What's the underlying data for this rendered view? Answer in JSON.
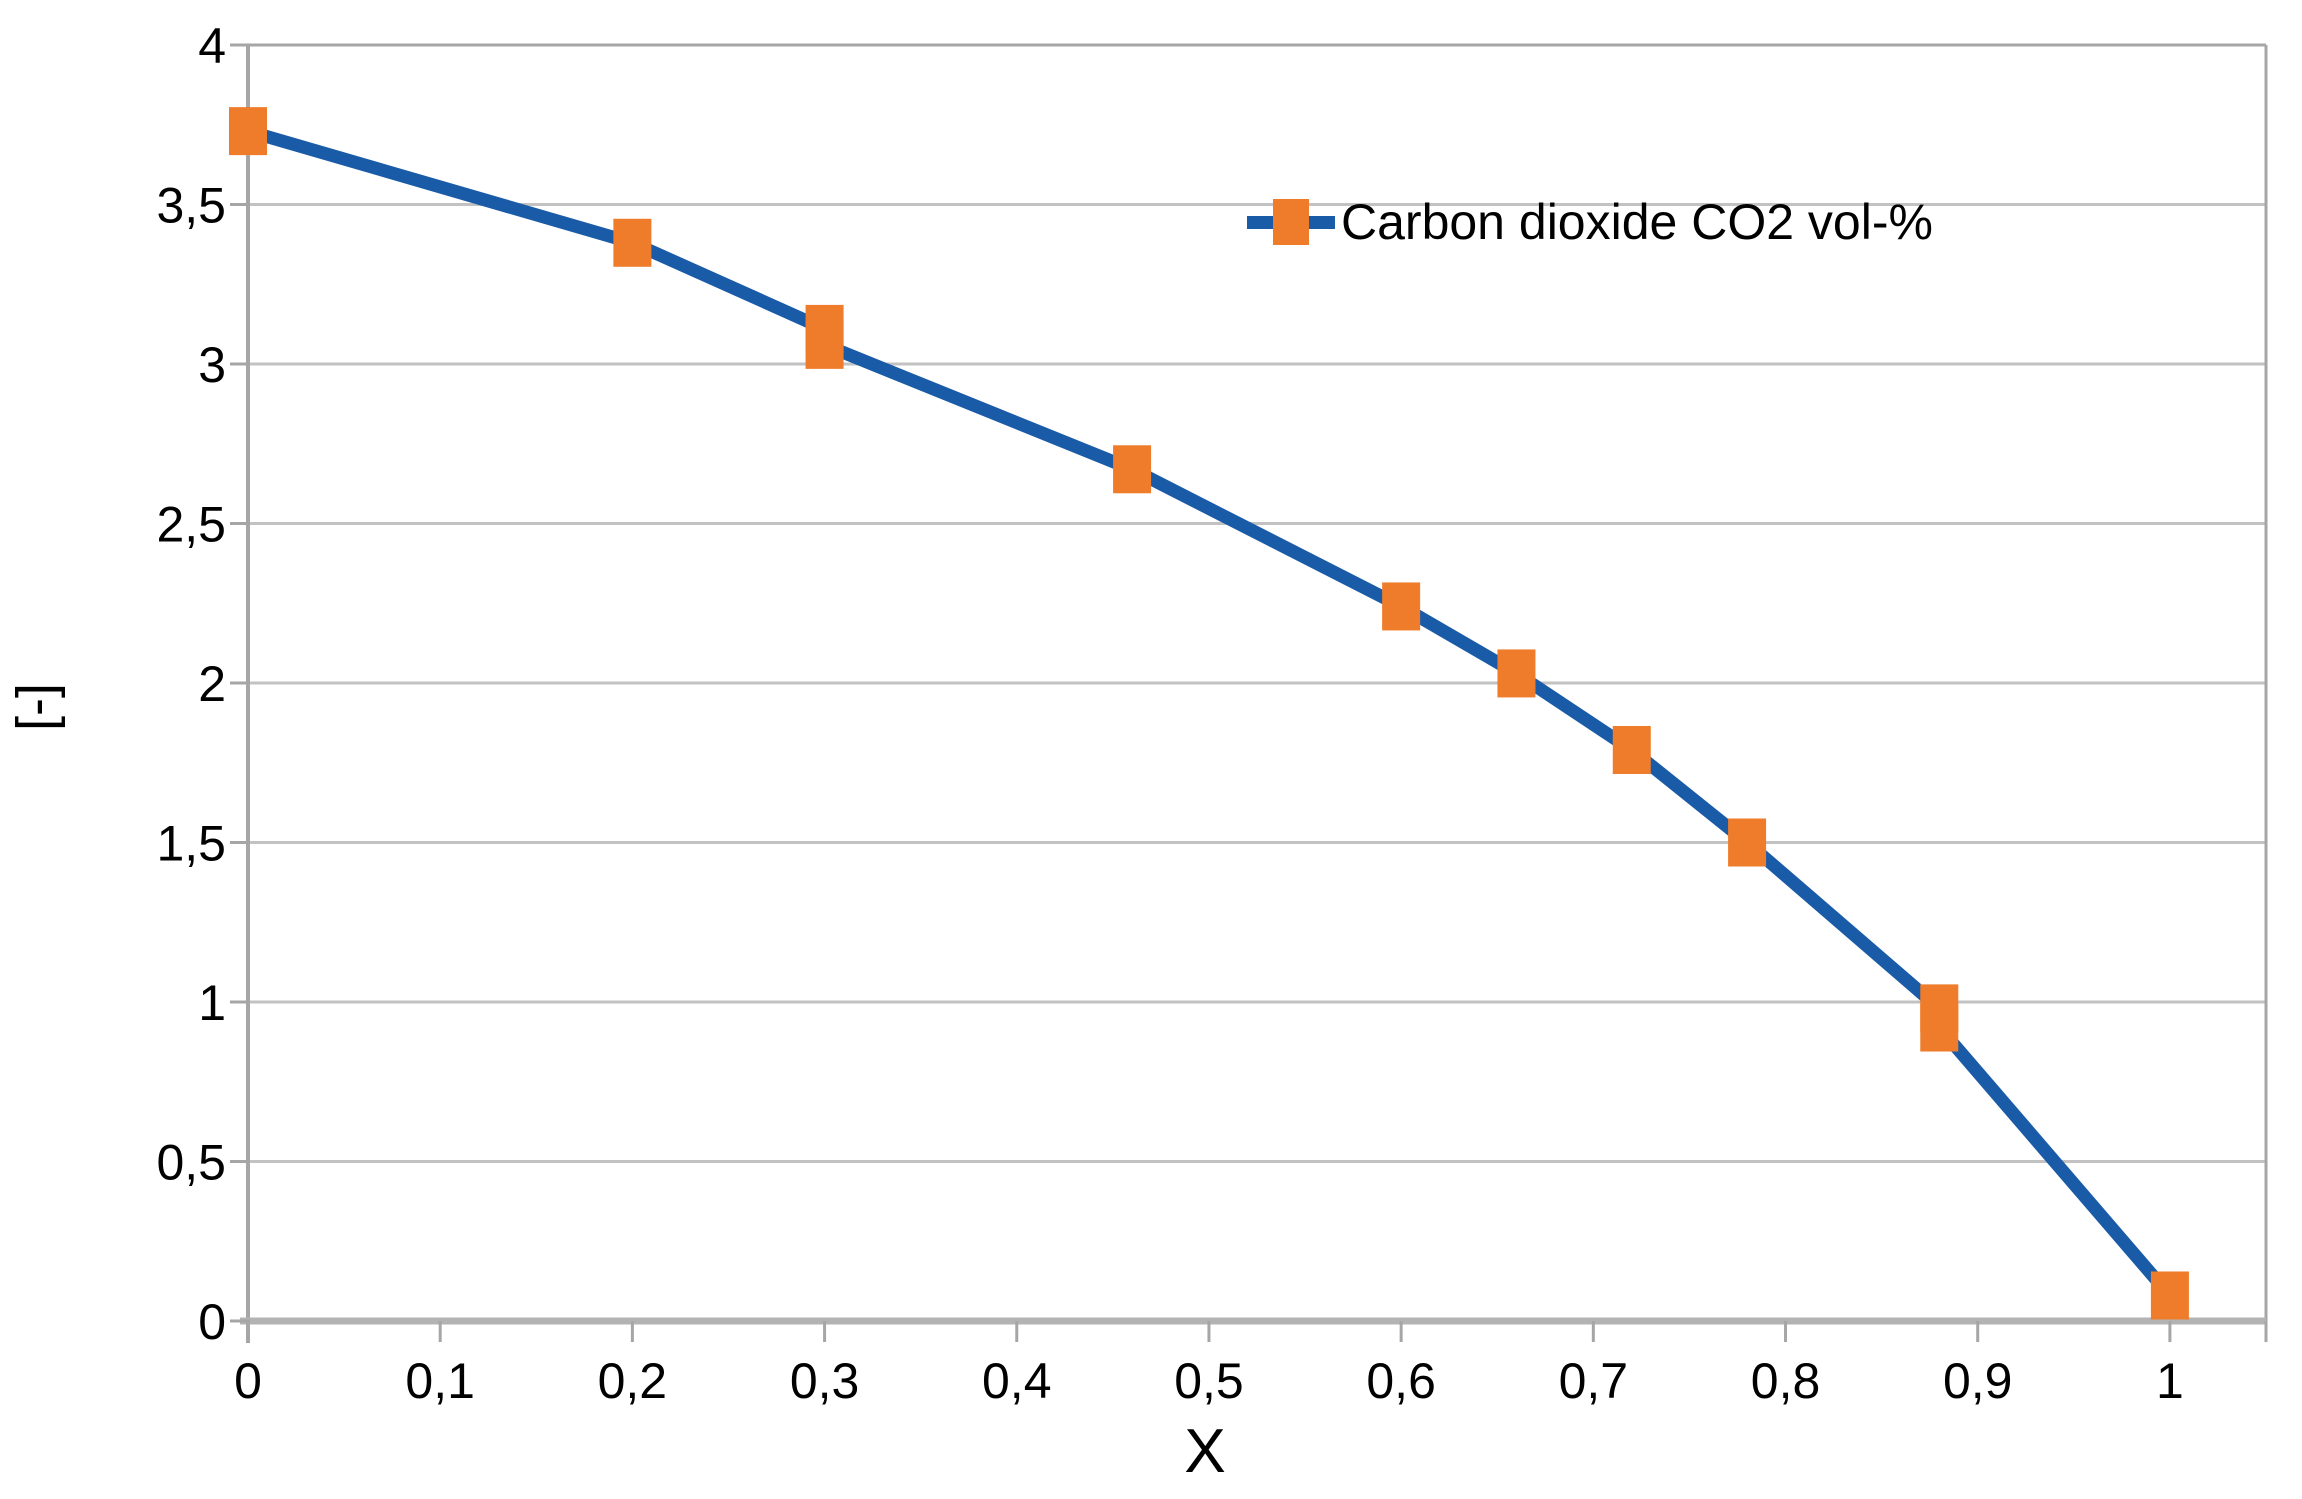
{
  "chart_data": {
    "type": "line",
    "title": "",
    "xlabel": "X",
    "ylabel": "[-]",
    "xlim": [
      0,
      1.05
    ],
    "ylim": [
      0,
      4
    ],
    "grid": "horizontal",
    "legend_position": "inside-top-center",
    "x_ticks": [
      0,
      0.1,
      0.2,
      0.3,
      0.4,
      0.5,
      0.6,
      0.7,
      0.8,
      0.9,
      1
    ],
    "x_tick_labels": [
      "0",
      "0,1",
      "0,2",
      "0,3",
      "0,4",
      "0,5",
      "0,6",
      "0,7",
      "0,8",
      "0,9",
      "1"
    ],
    "y_ticks": [
      0,
      0.5,
      1,
      1.5,
      2,
      2.5,
      3,
      3.5,
      4
    ],
    "y_tick_labels": [
      "0",
      "0,5",
      "1",
      "1,5",
      "2",
      "2,5",
      "3",
      "3,5",
      "4"
    ],
    "series": [
      {
        "name": "Carbon dioxide CO2 vol-%",
        "marker": "square",
        "points": [
          [
            0,
            3.73
          ],
          [
            0.2,
            3.38
          ],
          [
            0.3,
            3.11
          ],
          [
            0.3,
            3.06
          ],
          [
            0.46,
            2.67
          ],
          [
            0.6,
            2.24
          ],
          [
            0.66,
            2.03
          ],
          [
            0.72,
            1.79
          ],
          [
            0.78,
            1.5
          ],
          [
            0.88,
            0.98
          ],
          [
            0.88,
            0.92
          ],
          [
            1,
            0.08
          ]
        ]
      }
    ]
  },
  "legend": {
    "label": "Carbon dioxide CO2 vol-%"
  },
  "axes": {
    "x_title": "X",
    "y_title": "[-]"
  },
  "colors": {
    "line": "#1A5BA8",
    "marker": "#EE7C2A",
    "gridline": "#C2C2C2",
    "axis": "#A6A6A6",
    "baseline": "#B3B3B3",
    "text": "#000000",
    "background": "#FFFFFF"
  }
}
